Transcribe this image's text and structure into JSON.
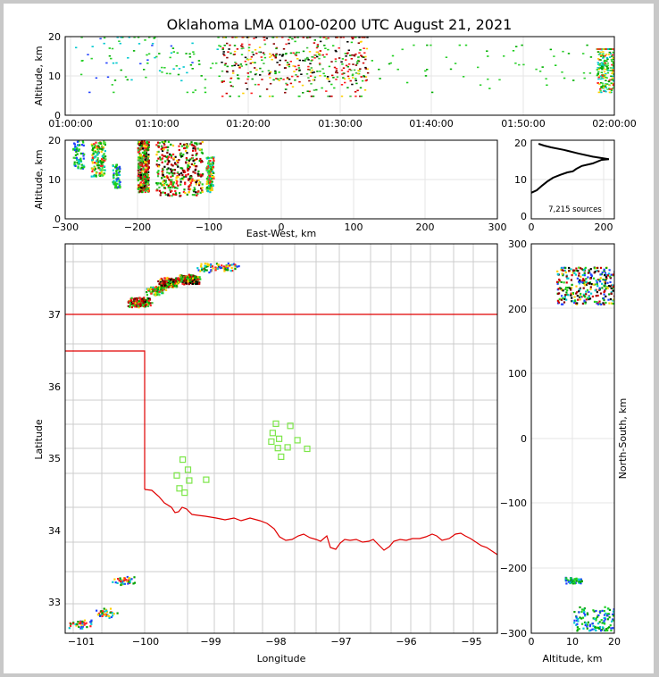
{
  "title": "Oklahoma LMA 0100-0200 UTC August 21, 2021",
  "source_count_label": "7,215 sources",
  "panels": {
    "time_height": {
      "ylabel": "Altitude, km",
      "xticks": [
        "01:00:00",
        "01:10:00",
        "01:20:00",
        "01:30:00",
        "01:40:00",
        "01:50:00",
        "02:00:00"
      ],
      "yticks": [
        "0",
        "10",
        "20"
      ]
    },
    "ew_alt": {
      "ylabel": "Altitude, km",
      "xlabel": "East-West, km",
      "xticks": [
        "−300",
        "−200",
        "−100",
        "0",
        "100",
        "200",
        "300"
      ],
      "yticks": [
        "0",
        "10",
        "20"
      ]
    },
    "alt_hist": {
      "xticks": [
        "0",
        "200"
      ],
      "yticks": [
        "0",
        "10",
        "20"
      ]
    },
    "plan": {
      "xlabel": "Longitude",
      "ylabel": "Latitude",
      "xticks": [
        "−101",
        "−100",
        "−99",
        "−98",
        "−97",
        "−96",
        "−95"
      ],
      "yticks": [
        "33",
        "34",
        "35",
        "36",
        "37"
      ]
    },
    "ns_alt": {
      "xlabel": "Altitude, km",
      "ylabel": "North-South, km",
      "xticks": [
        "0",
        "10",
        "20"
      ],
      "yticks": [
        "−300",
        "−200",
        "−100",
        "0",
        "100",
        "200",
        "300"
      ]
    }
  },
  "colors": {
    "state_border": "#e00000",
    "county_lines": "#c8c8c8",
    "stations": "#7de64a",
    "frame": "#c8c8c8"
  },
  "chart_data": [
    {
      "type": "scatter",
      "panel": "time-altitude density",
      "xlabel": "",
      "ylabel": "Altitude, km",
      "xlim": [
        "01:00:00",
        "02:00:00"
      ],
      "ylim": [
        0,
        20
      ],
      "clusters": [
        {
          "t_start": "01:01:00",
          "t_end": "01:17:00",
          "alt_min": 6,
          "alt_max": 20,
          "density": "low"
        },
        {
          "t_start": "01:17:00",
          "t_end": "01:33:00",
          "alt_min": 5,
          "alt_max": 20,
          "density": "high"
        },
        {
          "t_start": "01:33:00",
          "t_end": "01:58:00",
          "alt_min": 6,
          "alt_max": 18,
          "density": "sparse"
        },
        {
          "t_start": "01:58:00",
          "t_end": "02:00:00",
          "alt_min": 6,
          "alt_max": 17,
          "density": "medium"
        }
      ]
    },
    {
      "type": "scatter",
      "panel": "east-west vs altitude",
      "xlabel": "East-West, km",
      "ylabel": "Altitude, km",
      "xlim": [
        -300,
        300
      ],
      "ylim": [
        0,
        20
      ],
      "clusters": [
        {
          "x_min": -290,
          "x_max": -275,
          "alt_min": 13,
          "alt_max": 20,
          "density": "low"
        },
        {
          "x_min": -265,
          "x_max": -245,
          "alt_min": 11,
          "alt_max": 20,
          "density": "medium"
        },
        {
          "x_min": -235,
          "x_max": -225,
          "alt_min": 8,
          "alt_max": 14,
          "density": "low"
        },
        {
          "x_min": -200,
          "x_max": -185,
          "alt_min": 7,
          "alt_max": 20,
          "density": "high"
        },
        {
          "x_min": -175,
          "x_max": -110,
          "alt_min": 6,
          "alt_max": 20,
          "density": "high"
        },
        {
          "x_min": -105,
          "x_max": -95,
          "alt_min": 7,
          "alt_max": 16,
          "density": "medium"
        }
      ]
    },
    {
      "type": "line",
      "panel": "altitude histogram",
      "xlim": [
        0,
        230
      ],
      "ylim": [
        0,
        21
      ],
      "points": [
        [
          0,
          6.3
        ],
        [
          15,
          7
        ],
        [
          30,
          8.3
        ],
        [
          45,
          9.5
        ],
        [
          60,
          10.5
        ],
        [
          80,
          11.3
        ],
        [
          100,
          12
        ],
        [
          115,
          12.3
        ],
        [
          125,
          13
        ],
        [
          140,
          13.8
        ],
        [
          170,
          14.5
        ],
        [
          195,
          15.5
        ],
        [
          215,
          15.7
        ],
        [
          170,
          16.4
        ],
        [
          130,
          17.3
        ],
        [
          90,
          18.3
        ],
        [
          55,
          19
        ],
        [
          35,
          19.5
        ],
        [
          20,
          20
        ]
      ]
    },
    {
      "type": "scatter",
      "panel": "plan view",
      "xlabel": "Longitude",
      "ylabel": "Latitude",
      "xlim": [
        -101.25,
        -94.6
      ],
      "ylim": [
        32.6,
        38.0
      ],
      "clusters": [
        {
          "lon": -100.1,
          "lat": 37.18,
          "density": "high"
        },
        {
          "lon": -99.85,
          "lat": 37.35,
          "density": "medium"
        },
        {
          "lon": -99.65,
          "lat": 37.45,
          "density": "high"
        },
        {
          "lon": -99.35,
          "lat": 37.5,
          "density": "high"
        },
        {
          "lon": -99.05,
          "lat": 37.65,
          "density": "low"
        },
        {
          "lon": -98.75,
          "lat": 37.67,
          "density": "low"
        },
        {
          "lon": -100.35,
          "lat": 33.3,
          "density": "low"
        },
        {
          "lon": -100.62,
          "lat": 32.85,
          "density": "low"
        },
        {
          "lon": -101.0,
          "lat": 32.7,
          "density": "low"
        }
      ],
      "stations": [
        [
          -98.0,
          35.48
        ],
        [
          -97.78,
          35.45
        ],
        [
          -98.05,
          35.35
        ],
        [
          -97.95,
          35.27
        ],
        [
          -98.07,
          35.23
        ],
        [
          -97.67,
          35.25
        ],
        [
          -97.82,
          35.15
        ],
        [
          -97.97,
          35.14
        ],
        [
          -97.52,
          35.13
        ],
        [
          -97.92,
          35.02
        ],
        [
          -99.43,
          34.98
        ],
        [
          -99.35,
          34.84
        ],
        [
          -99.52,
          34.76
        ],
        [
          -99.33,
          34.69
        ],
        [
          -99.07,
          34.7
        ],
        [
          -99.48,
          34.58
        ],
        [
          -99.4,
          34.52
        ]
      ]
    },
    {
      "type": "scatter",
      "panel": "altitude vs north-south",
      "xlabel": "Altitude, km",
      "ylabel": "North-South, km",
      "xlim": [
        0,
        20
      ],
      "ylim": [
        -300,
        300
      ],
      "clusters": [
        {
          "alt_min": 6,
          "alt_max": 20,
          "ns_min": 208,
          "ns_max": 265,
          "density": "high"
        },
        {
          "alt_min": 8,
          "alt_max": 12,
          "ns_min": -222,
          "ns_max": -213,
          "density": "low"
        },
        {
          "alt_min": 10,
          "alt_max": 20,
          "ns_min": -295,
          "ns_max": -258,
          "density": "medium"
        }
      ]
    }
  ]
}
